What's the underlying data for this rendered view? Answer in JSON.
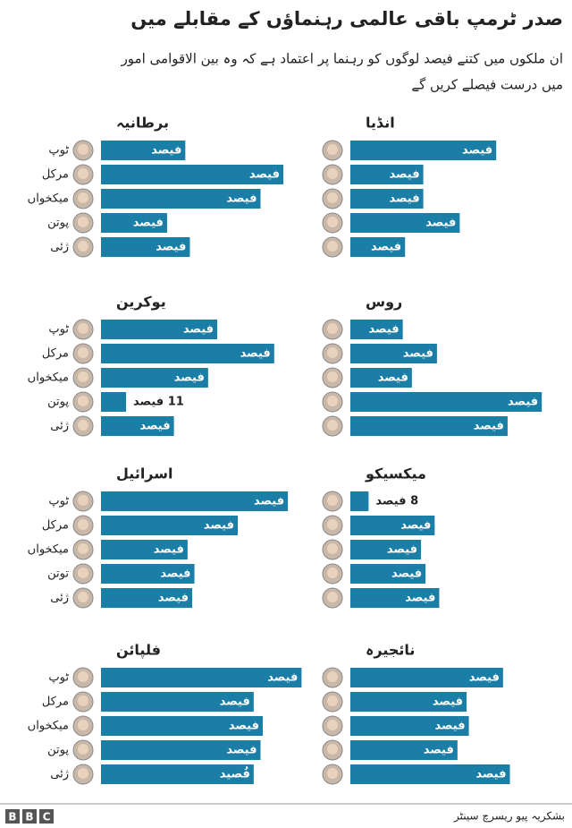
{
  "title": "صدر ٹرمپ باقی عالمی رہنماؤں کے مقابلے میں",
  "subtitle": [
    "ان ملکوں میں کتنے فیصد لوگوں کو رہنما پر اعتماد ہے کہ وہ بین الاقوامی امور",
    "میں درست فیصلے کریں گے"
  ],
  "source": "بشکریہ پیو ریسرچ سینٹر",
  "logo": [
    "B",
    "B",
    "C"
  ],
  "chart_data": [
    {
      "type": "bar",
      "title": "برطانیہ",
      "categories": [
        "ٹوپ",
        "مرکل",
        "میکخواں",
        "پوتن",
        "ژئی"
      ],
      "values": [
        37,
        80,
        70,
        29,
        39
      ],
      "value_labels": [
        "فیصد",
        "فیصد",
        "فیصد",
        "فیصد",
        "فیصد"
      ],
      "color": "#1a7ea6",
      "xlim": [
        0,
        100
      ]
    },
    {
      "type": "bar",
      "title": "انڈیا",
      "values": [
        64,
        32,
        32,
        48,
        24
      ],
      "value_labels": [
        "فیصد",
        "فیصد",
        "فیصد",
        "فیصد",
        "فیصد"
      ],
      "color": "#1a7ea6",
      "xlim": [
        0,
        100
      ]
    },
    {
      "type": "bar",
      "title": "یوکرین",
      "categories": [
        "ٹوپ",
        "مرکل",
        "میکخواں",
        "پوتن",
        "ژئی"
      ],
      "values": [
        51,
        76,
        47,
        11,
        32
      ],
      "value_labels": [
        "فیصد",
        "فیصد",
        "فیصد",
        "11 فیصد",
        "فیصد"
      ],
      "color": "#1a7ea6",
      "xlim": [
        0,
        100
      ]
    },
    {
      "type": "bar",
      "title": "روس",
      "values": [
        23,
        38,
        27,
        84,
        69
      ],
      "value_labels": [
        "فیصد",
        "فیصد",
        "فیصد",
        "فیصد",
        "فیصد"
      ],
      "color": "#1a7ea6",
      "xlim": [
        0,
        100
      ]
    },
    {
      "type": "bar",
      "title": "اسرائیل",
      "categories": [
        "ٹوپ",
        "مرکل",
        "میکخواں",
        "توتن",
        "ژئی"
      ],
      "values": [
        82,
        60,
        38,
        41,
        40
      ],
      "value_labels": [
        "فیصد",
        "فیصد",
        "فیصد",
        "فیصد",
        "فیصد"
      ],
      "color": "#1a7ea6",
      "xlim": [
        0,
        100
      ]
    },
    {
      "type": "bar",
      "title": "میکسیکو",
      "values": [
        8,
        37,
        31,
        33,
        39
      ],
      "value_labels": [
        "8 فیصد",
        "فیصد",
        "فیصد",
        "فیصد",
        "فیصد"
      ],
      "color": "#1a7ea6",
      "xlim": [
        0,
        100
      ]
    },
    {
      "type": "bar",
      "title": "فلپائن",
      "categories": [
        "ٹوپ",
        "مرکل",
        "میکخواں",
        "پوتن",
        "ژئی"
      ],
      "values": [
        88,
        67,
        71,
        70,
        67
      ],
      "value_labels": [
        "فیصد",
        "فیصد",
        "فیصد",
        "فیصد",
        "فُصید"
      ],
      "color": "#1a7ea6",
      "xlim": [
        0,
        100
      ]
    },
    {
      "type": "bar",
      "title": "نائجیرہ",
      "values": [
        67,
        51,
        52,
        47,
        70
      ],
      "value_labels": [
        "فیصد",
        "فیصد",
        "فیصد",
        "فیصد",
        "فیصد"
      ],
      "color": "#1a7ea6",
      "xlim": [
        0,
        100
      ]
    }
  ]
}
